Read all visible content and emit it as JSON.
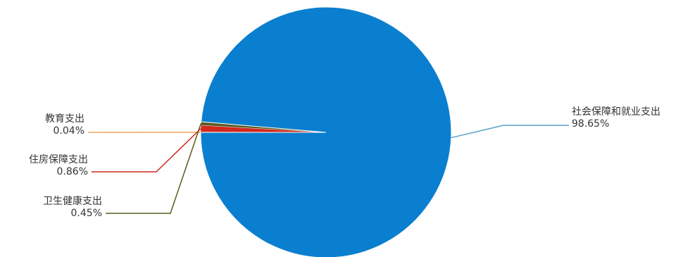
{
  "chart_data": {
    "type": "pie",
    "title": "",
    "series": [
      {
        "slices": [
          {
            "label": "社会保障和就业支出",
            "value": 98.65,
            "value_label": "98.65%",
            "color": "#0a7fcf"
          },
          {
            "label": "教育支出",
            "value": 0.04,
            "value_label": "0.04%",
            "color": "#f4a460"
          },
          {
            "label": "住房保障支出",
            "value": 0.86,
            "value_label": "0.86%",
            "color": "#d2281e"
          },
          {
            "label": "卫生健康支出",
            "value": 0.45,
            "value_label": "0.45%",
            "color": "#5a5a1e"
          }
        ]
      }
    ],
    "legend": "none",
    "label_style": "outside-with-leader-lines"
  }
}
